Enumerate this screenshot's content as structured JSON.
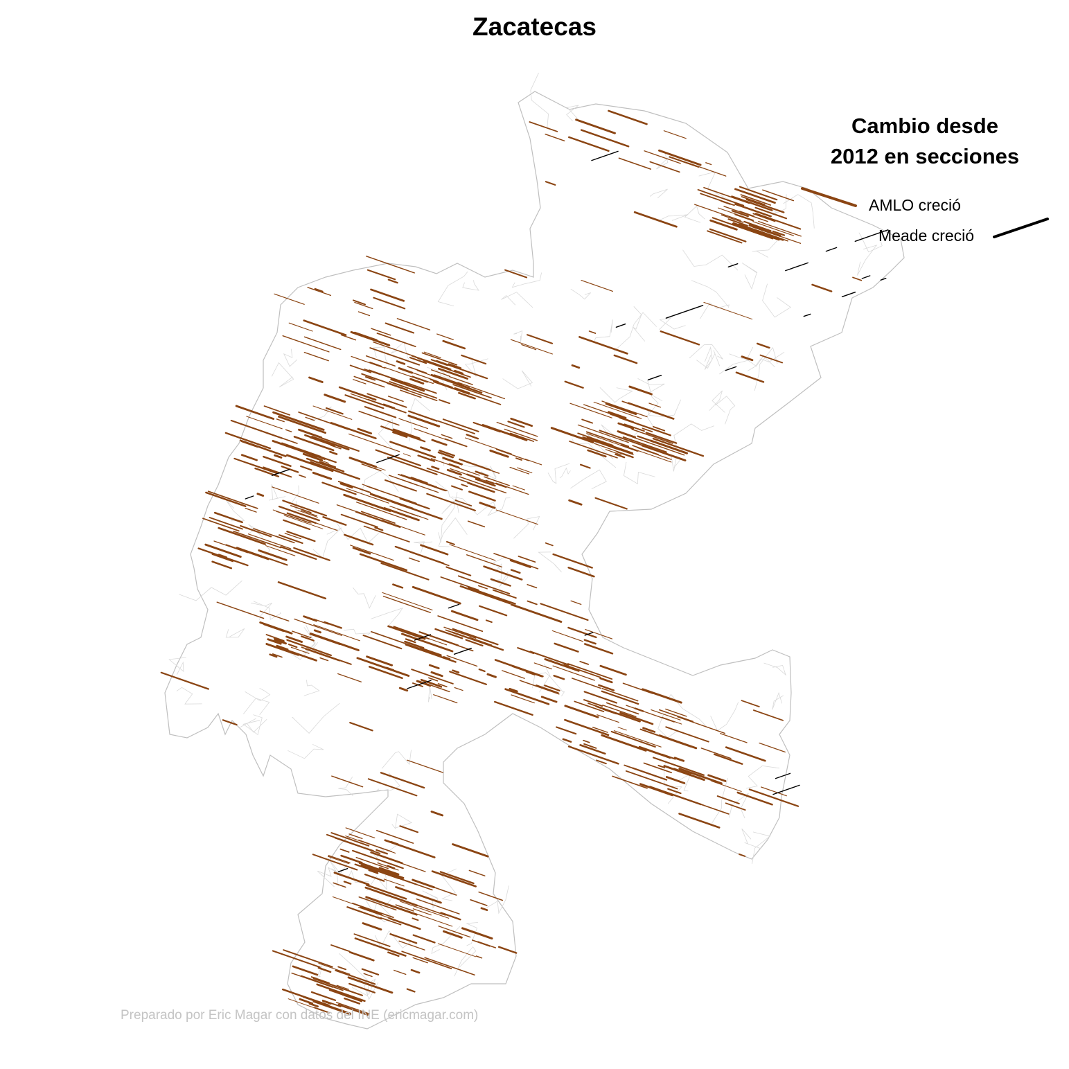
{
  "title": "Zacatecas",
  "legend": {
    "title_line1": "Cambio desde",
    "title_line2": "2012 en secciones",
    "amlo_label": "AMLO creció",
    "meade_label": "Meade creció",
    "amlo_color": "#8B4513",
    "meade_color": "#000000"
  },
  "credit": "Preparado por Eric Magar con datos del INE (ericmagar.com)",
  "colors": {
    "outline": "#bfbfbf",
    "internal_borders": "#d9d9d9",
    "amlo": "#8B4513",
    "meade": "#000000"
  }
}
